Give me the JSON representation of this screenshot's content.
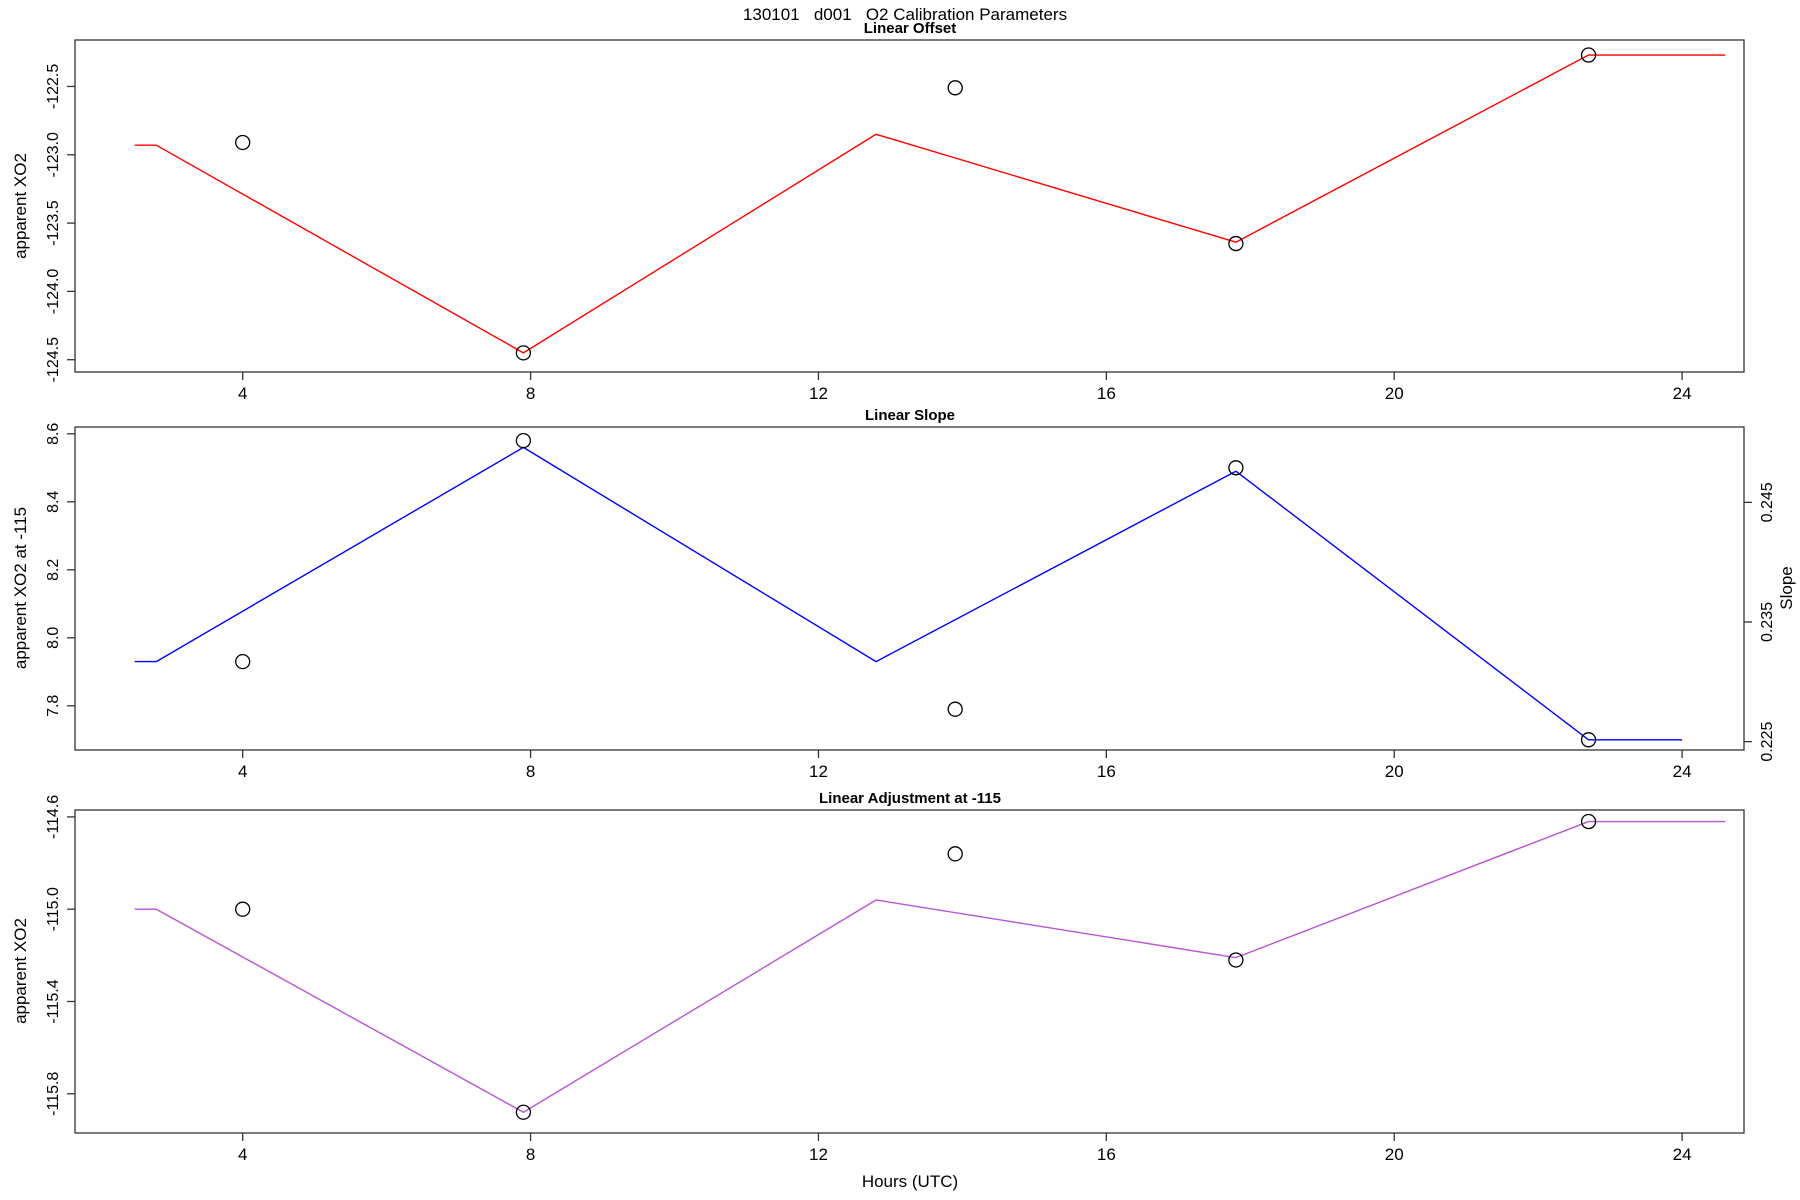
{
  "figure": {
    "title": "130101   d001   O2 Calibration Parameters",
    "xlabel": "Hours (UTC)"
  },
  "chart_data": [
    {
      "type": "line",
      "title": "Linear Offset",
      "ylabel": "apparent XO2",
      "line_color": "#ff0000",
      "xlim": [
        1.67,
        24.86
      ],
      "ylim": [
        -124.59,
        -122.16
      ],
      "xticks": [
        "4",
        "8",
        "12",
        "16",
        "20",
        "24"
      ],
      "yticks": [
        "-122.5",
        "-123.0",
        "-123.5",
        "-124.0",
        "-124.5"
      ],
      "line": {
        "x": [
          2.5,
          2.8,
          7.9,
          12.8,
          17.8,
          22.7,
          24.6
        ],
        "y": [
          -122.93,
          -122.93,
          -124.45,
          -122.85,
          -123.64,
          -122.27,
          -122.27
        ]
      },
      "points": {
        "x": [
          4.0,
          7.9,
          13.9,
          17.8,
          22.7
        ],
        "y": [
          -122.91,
          -124.45,
          -122.51,
          -123.65,
          -122.27
        ]
      }
    },
    {
      "type": "line",
      "title": "Linear Slope",
      "ylabel": "apparent XO2 at -115",
      "line_color": "#0000ff",
      "xlim": [
        1.67,
        24.86
      ],
      "ylim": [
        7.67,
        8.62
      ],
      "xticks": [
        "4",
        "8",
        "12",
        "16",
        "20",
        "24"
      ],
      "yticks": [
        "8.6",
        "8.4",
        "8.2",
        "8.0",
        "7.8"
      ],
      "right_axis": {
        "label": "Slope",
        "ticks": [
          "0.225",
          "0.235",
          "0.245"
        ],
        "ylim": [
          0.2243,
          0.2513
        ]
      },
      "line": {
        "x": [
          2.5,
          2.8,
          7.9,
          12.8,
          17.8,
          22.7,
          24.0
        ],
        "y": [
          7.93,
          7.93,
          8.56,
          7.93,
          8.49,
          7.7,
          7.7
        ]
      },
      "points": {
        "x": [
          4.0,
          7.9,
          13.9,
          17.8,
          22.7
        ],
        "y": [
          7.93,
          8.58,
          7.79,
          8.5,
          7.7
        ]
      }
    },
    {
      "type": "line",
      "title": "Linear Adjustment at -115",
      "ylabel": "apparent XO2",
      "line_color": "#ba55d3",
      "xlim": [
        1.67,
        24.86
      ],
      "ylim": [
        -115.97,
        -114.57
      ],
      "xticks": [
        "4",
        "8",
        "12",
        "16",
        "20",
        "24"
      ],
      "yticks": [
        "-114.6",
        "-115.0",
        "-115.4",
        "-115.8"
      ],
      "line": {
        "x": [
          2.5,
          2.8,
          7.9,
          12.8,
          17.8,
          22.7,
          24.6
        ],
        "y": [
          -115.0,
          -115.0,
          -115.88,
          -114.96,
          -115.21,
          -114.62,
          -114.62
        ]
      },
      "points": {
        "x": [
          4.0,
          7.9,
          13.9,
          17.8,
          22.7
        ],
        "y": [
          -115.0,
          -115.88,
          -114.76,
          -115.22,
          -114.62
        ]
      }
    }
  ]
}
